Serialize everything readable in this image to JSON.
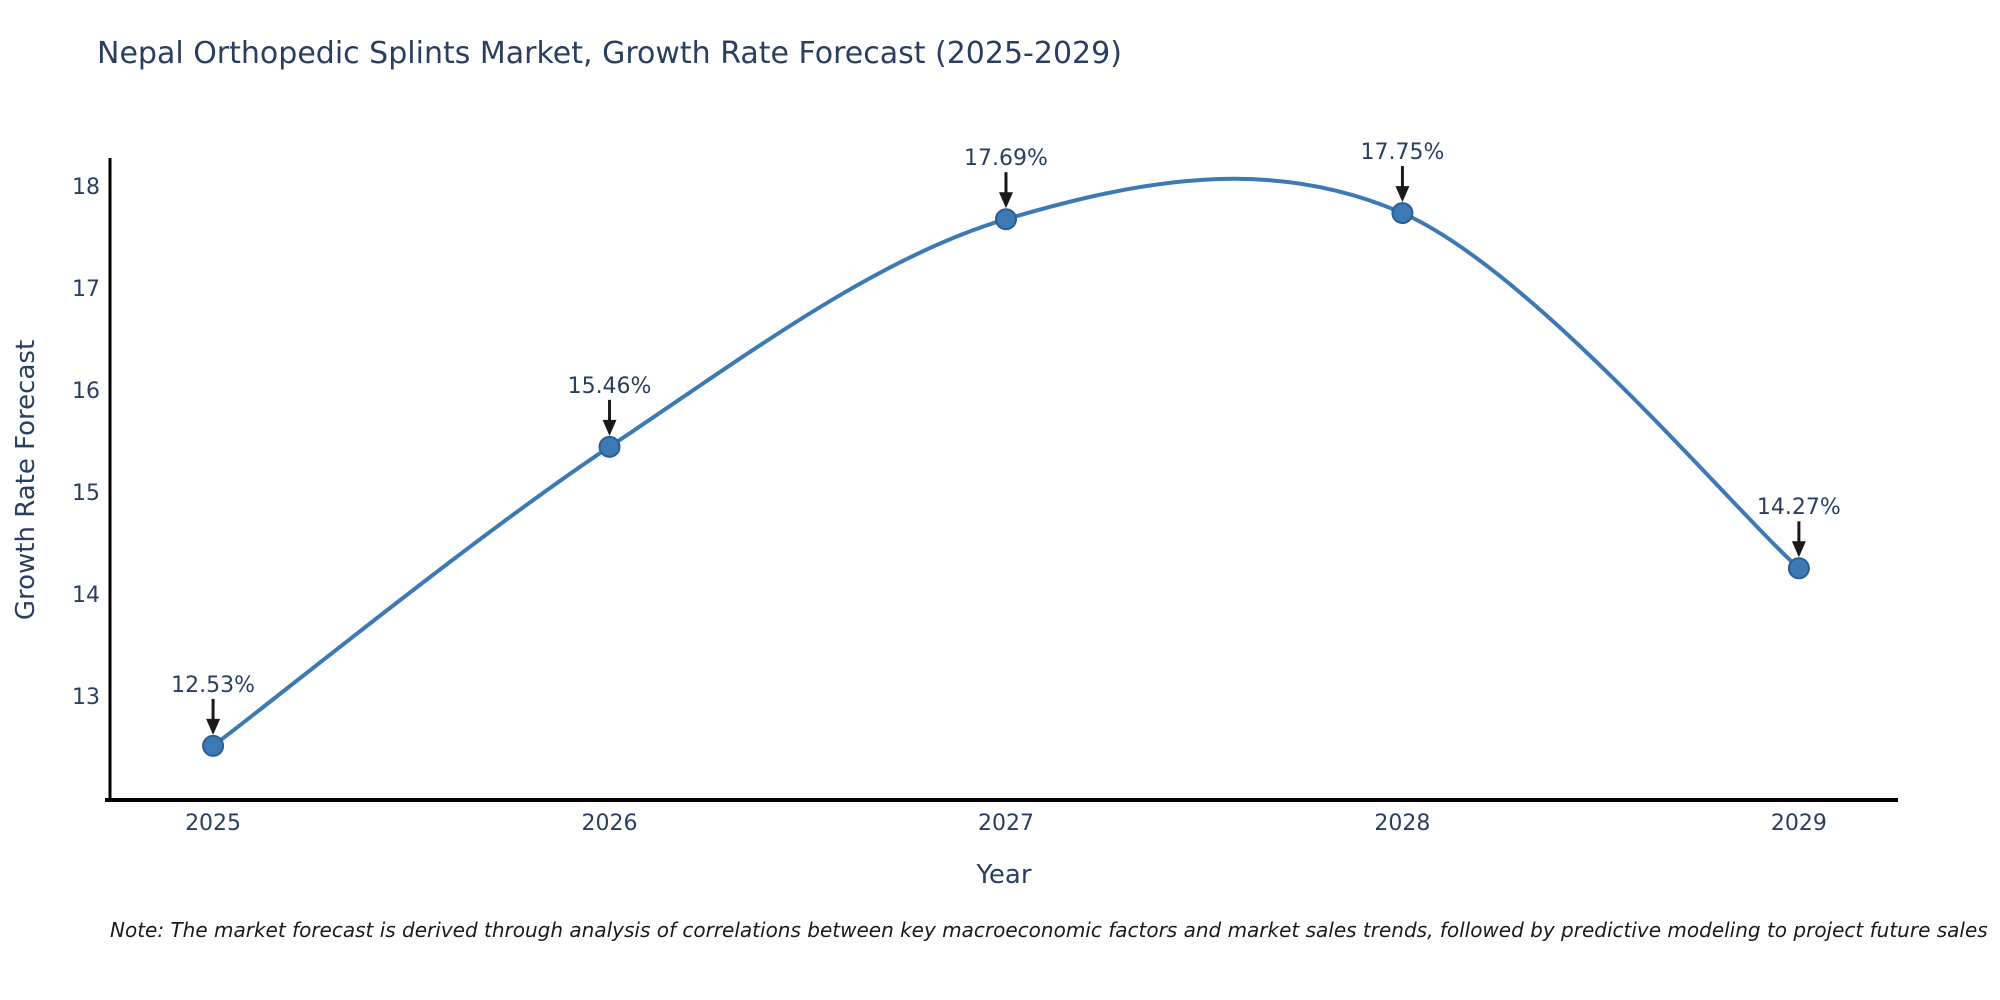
{
  "title": "Nepal Orthopedic Splints Market, Growth Rate Forecast (2025-2029)",
  "note": "Note: The market forecast is derived through analysis of correlations between key macroeconomic factors and market sales trends, followed by predictive modeling to project future sales",
  "chart_data": {
    "type": "line",
    "line_shape": "spline",
    "title": "Nepal Orthopedic Splints Market, Growth Rate Forecast (2025-2029)",
    "xlabel": "Year",
    "ylabel": "Growth Rate Forecast",
    "x": [
      2025,
      2026,
      2027,
      2028,
      2029
    ],
    "values": [
      12.53,
      15.46,
      17.69,
      17.75,
      14.27
    ],
    "point_labels": [
      "12.53%",
      "15.46%",
      "17.69%",
      "17.75%",
      "14.27%"
    ],
    "xticks": [
      "2025",
      "2026",
      "2027",
      "2028",
      "2029"
    ],
    "yticks": [
      13,
      14,
      15,
      16,
      17,
      18
    ],
    "xlim": [
      2024.74,
      2029.25
    ],
    "ylim": [
      12.0,
      18.27
    ],
    "grid": false,
    "legend": false,
    "markers": true,
    "annotation_arrows": true,
    "colors": {
      "line": "#3d7ab5",
      "marker": "#3d7ab5",
      "marker_edge": "#2a5f8f",
      "axis": "#000000",
      "text": "#2a3f5f",
      "annotation_arrow": "#1a1a1a",
      "background": "#ffffff"
    }
  }
}
